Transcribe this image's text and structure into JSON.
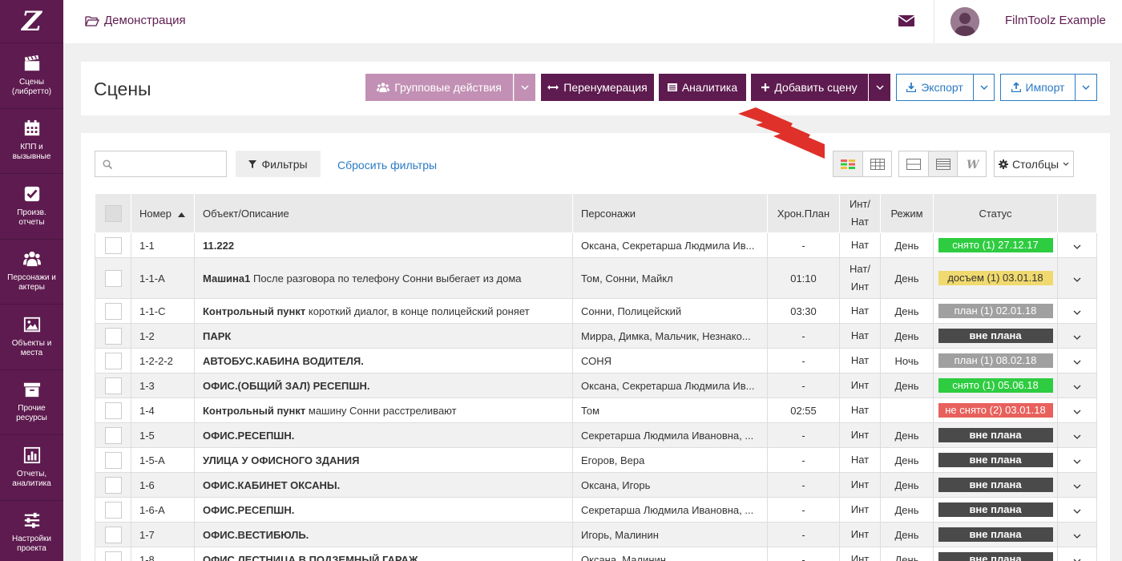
{
  "logo": "Z",
  "sidebar": {
    "items": [
      {
        "label": "Сцены\n(либретто)",
        "icon": "clapperboard-icon"
      },
      {
        "label": "КПП и\nвызывные",
        "icon": "calendar-icon"
      },
      {
        "label": "Произв.\nотчеты",
        "icon": "checkbox-icon"
      },
      {
        "label": "Персонажи и\nактеры",
        "icon": "users-icon"
      },
      {
        "label": "Объекты и\nместа",
        "icon": "image-icon"
      },
      {
        "label": "Прочие\nресурсы",
        "icon": "archive-icon"
      },
      {
        "label": "Отчеты,\nаналитика",
        "icon": "bar-chart-icon"
      },
      {
        "label": "Настройки\nпроекта",
        "icon": "sliders-icon"
      }
    ]
  },
  "topbar": {
    "breadcrumb": "Демонстрация",
    "user_name": "FilmToolz Example"
  },
  "header": {
    "title": "Сцены",
    "btn_group": "Групповые действия",
    "btn_renumber": "Перенумерация",
    "btn_analytics": "Аналитика",
    "btn_add": "Добавить сцену",
    "btn_export": "Экспорт",
    "btn_import": "Импорт"
  },
  "toolbar": {
    "search_placeholder": "",
    "filters": "Фильтры",
    "reset": "Сбросить фильтры",
    "columns": "Столбцы"
  },
  "table": {
    "headers": {
      "number": "Номер",
      "object": "Объект/Описание",
      "characters": "Персонажи",
      "chrono": "Хрон.План",
      "intnat": "Инт/\nНат",
      "mode": "Режим",
      "status": "Статус"
    },
    "rows": [
      {
        "num": "1-1",
        "obj": "11.222",
        "desc": "",
        "chars": "Оксана, Секретарша Людмила Ив...",
        "chrono": "-",
        "intnat": "Нат",
        "mode": "День",
        "status": "снято (1) 27.12.17",
        "st": "green"
      },
      {
        "num": "1-1-А",
        "obj": "Машина1",
        "desc": " После разговора по телефону Сонни выбегает из дома",
        "chars": "Том, Сонни, Майкл",
        "chrono": "01:10",
        "intnat": "Нат/\nИнт",
        "mode": "День",
        "status": "досъем (1) 03.01.18",
        "st": "yellow",
        "tall": true
      },
      {
        "num": "1-1-С",
        "obj": "Контрольный пункт",
        "desc": " короткий диалог, в конце полицейский роняет",
        "chars": "Сонни, Полицейский",
        "chrono": "03:30",
        "intnat": "Нат",
        "mode": "День",
        "status": "план (1) 02.01.18",
        "st": "gray"
      },
      {
        "num": "1-2",
        "obj": "ПАРК",
        "desc": "",
        "chars": "Мирра, Димка, Мальчик, Незнако...",
        "chrono": "-",
        "intnat": "Нат",
        "mode": "День",
        "status": "вне плана",
        "st": "dark"
      },
      {
        "num": "1-2-2-2",
        "obj": "АВТОБУС.КАБИНА ВОДИТЕЛЯ.",
        "desc": "",
        "chars": "СОНЯ",
        "chrono": "-",
        "intnat": "Нат",
        "mode": "Ночь",
        "status": "план (1) 08.02.18",
        "st": "gray"
      },
      {
        "num": "1-3",
        "obj": "ОФИС.(ОБЩИЙ ЗАЛ) РЕСЕПШН.",
        "desc": "",
        "chars": "Оксана, Секретарша Людмила Ив...",
        "chrono": "-",
        "intnat": "Инт",
        "mode": "День",
        "status": "снято (1) 05.06.18",
        "st": "green"
      },
      {
        "num": "1-4",
        "obj": "Контрольный пункт",
        "desc": " машину Сонни расстреливают",
        "chars": "Том",
        "chrono": "02:55",
        "intnat": "Нат",
        "mode": "",
        "status": "не снято (2) 03.01.18",
        "st": "red"
      },
      {
        "num": "1-5",
        "obj": "ОФИС.РЕСЕПШН.",
        "desc": "",
        "chars": "Секретарша Людмила Ивановна, ...",
        "chrono": "-",
        "intnat": "Инт",
        "mode": "День",
        "status": "вне плана",
        "st": "dark"
      },
      {
        "num": "1-5-А",
        "obj": "УЛИЦА У ОФИСНОГО ЗДАНИЯ",
        "desc": "",
        "chars": "Егоров, Вера",
        "chrono": "-",
        "intnat": "Нат",
        "mode": "День",
        "status": "вне плана",
        "st": "dark"
      },
      {
        "num": "1-6",
        "obj": "ОФИС.КАБИНЕТ ОКСАНЫ.",
        "desc": "",
        "chars": "Оксана, Игорь",
        "chrono": "-",
        "intnat": "Инт",
        "mode": "День",
        "status": "вне плана",
        "st": "dark"
      },
      {
        "num": "1-6-А",
        "obj": "ОФИС.РЕСЕПШН.",
        "desc": "",
        "chars": "Секретарша Людмила Ивановна, ...",
        "chrono": "-",
        "intnat": "Инт",
        "mode": "День",
        "status": "вне плана",
        "st": "dark"
      },
      {
        "num": "1-7",
        "obj": "ОФИС.ВЕСТИБЮЛЬ.",
        "desc": "",
        "chars": "Игорь, Малинин",
        "chrono": "-",
        "intnat": "Инт",
        "mode": "День",
        "status": "вне плана",
        "st": "dark"
      },
      {
        "num": "1-8",
        "obj": "ОФИС.ЛЕСТНИЦА В ПОДЗЕМНЫЙ ГАРАЖ.",
        "desc": "",
        "chars": "Оксана, Малинин",
        "chrono": "-",
        "intnat": "Инт",
        "mode": "День",
        "status": "вне плана",
        "st": "dark"
      }
    ]
  },
  "colors": {
    "brand": "#5e1b4f",
    "link": "#2a7bc5",
    "green": "#2ecc40",
    "yellow": "#f0d96e",
    "gray": "#a0a0a0",
    "dark": "#4a4a4a",
    "red": "#e8605c"
  }
}
